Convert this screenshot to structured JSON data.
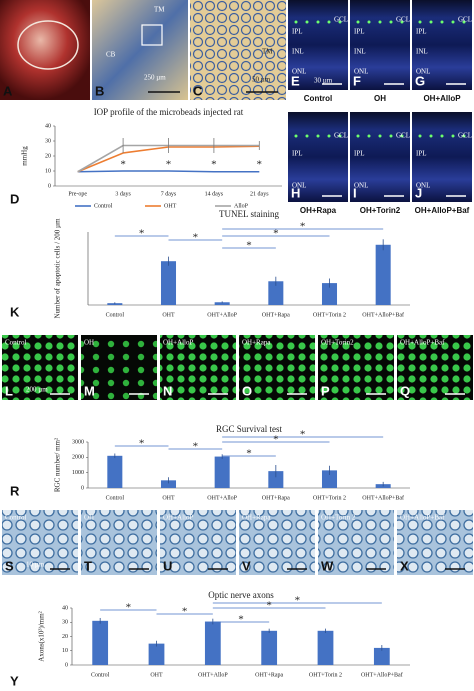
{
  "photos": [
    {
      "label": "A",
      "texts": []
    },
    {
      "label": "B",
      "texts": [
        "CB",
        "TM",
        "250 µm"
      ]
    },
    {
      "label": "C",
      "texts": [
        "TM",
        "50 µm"
      ]
    },
    {
      "label": "E",
      "texts": [
        "GCL",
        "IPL",
        "INL",
        "ONL",
        "30 µm"
      ],
      "caption": "Control"
    },
    {
      "label": "F",
      "texts": [
        "GCL",
        "IPL",
        "INL",
        "ONL"
      ],
      "caption": "OH"
    },
    {
      "label": "G",
      "texts": [
        "GCL",
        "IPL",
        "INL",
        "ONL"
      ],
      "caption": "OH+AlloP"
    },
    {
      "label": "H",
      "texts": [
        "GCL",
        "IPL",
        "ONL"
      ],
      "caption": "OH+Rapa"
    },
    {
      "label": "I",
      "texts": [
        "GCL",
        "IPL",
        "ONL"
      ],
      "caption": "OH+Torin2"
    },
    {
      "label": "J",
      "texts": [
        "GCL",
        "IPL",
        "ONL"
      ],
      "caption": "OH+AlloP+Baf"
    },
    {
      "label": "L",
      "texts": [
        "Control",
        "200 µm"
      ]
    },
    {
      "label": "M",
      "texts": [
        "OH"
      ]
    },
    {
      "label": "N",
      "texts": [
        "OH+AlloP"
      ]
    },
    {
      "label": "O",
      "texts": [
        "OH+Rapa"
      ]
    },
    {
      "label": "P",
      "texts": [
        "OH+Torin2"
      ]
    },
    {
      "label": "Q",
      "texts": [
        "OH+AlloP+Baf"
      ]
    },
    {
      "label": "S",
      "texts": [
        "Control",
        "10 µm"
      ]
    },
    {
      "label": "T",
      "texts": [
        "OH"
      ]
    },
    {
      "label": "U",
      "texts": [
        "OH+AlloP"
      ]
    },
    {
      "label": "V",
      "texts": [
        "OH+Rapa"
      ]
    },
    {
      "label": "W",
      "texts": [
        "OH+Torin 2"
      ]
    },
    {
      "label": "X",
      "texts": [
        "OH+AlloP+Baf"
      ]
    }
  ],
  "chart_data": [
    {
      "type": "line",
      "panel_label": "D",
      "title": "IOP profile of the microbeads injected rat",
      "y_label": "mmHg",
      "categories": [
        "Pre-ope",
        "3 days",
        "7 days",
        "14 days",
        "21 days"
      ],
      "ylim": [
        0,
        40
      ],
      "yticks": [
        0,
        10,
        20,
        30,
        40
      ],
      "legend": "bottom",
      "series": [
        {
          "name": "Control",
          "color": "#4472c4",
          "values": [
            9.5,
            10,
            10,
            9.5,
            9.5
          ]
        },
        {
          "name": "OHT",
          "color": "#ed7d31",
          "values": [
            9.5,
            22,
            26,
            26,
            26.5
          ]
        },
        {
          "name": "AlloP",
          "color": "#a5a5a5",
          "values": [
            9.5,
            27,
            27,
            27,
            27
          ],
          "errors": [
            0,
            5,
            5,
            5,
            3
          ]
        }
      ],
      "annotations": [
        "*",
        "*",
        "*",
        "*"
      ]
    },
    {
      "type": "bar",
      "panel_label": "K",
      "title": "TUNEL staining",
      "y_label": "Number of apoptotic cells / 200 µm",
      "color": "#4472c4",
      "categories": [
        "Control",
        "OHT",
        "OHT+AlloP",
        "OHT+Rapa",
        "OHT+Torin 2",
        "OHT+AlloP+Baf"
      ],
      "values": [
        2,
        48,
        3,
        26,
        24,
        66
      ],
      "errors": [
        1,
        5,
        1,
        5,
        5,
        6
      ],
      "ylim": [
        0,
        80
      ],
      "annotations": [
        "*",
        "*",
        "*",
        "*",
        "*"
      ]
    },
    {
      "type": "bar",
      "panel_label": "R",
      "title": "RGC Survival test",
      "y_label": "RGC number/ mm²",
      "color": "#4472c4",
      "categories": [
        "Control",
        "OHT",
        "OHT+AlloP",
        "OHT+Rapa",
        "OHT+Torin 2",
        "OHT+AlloP+Baf"
      ],
      "values": [
        2100,
        500,
        2050,
        1100,
        1150,
        250
      ],
      "errors": [
        150,
        200,
        150,
        400,
        300,
        150
      ],
      "ylim": [
        0,
        3000
      ],
      "yticks": [
        0,
        1000,
        2000,
        3000
      ],
      "annotations": [
        "*",
        "*",
        "*",
        "*",
        "*"
      ]
    },
    {
      "type": "bar",
      "panel_label": "Y",
      "title": "Optic nerve axons",
      "y_label": "Axons(x10³)/mm²",
      "color": "#4472c4",
      "categories": [
        "Control",
        "OHT",
        "OHT+AlloP",
        "OHT+Rapa",
        "OHT+Torin 2",
        "OHT+AlloP+Baf"
      ],
      "values": [
        31,
        15,
        30.5,
        24,
        24,
        12
      ],
      "errors": [
        2,
        2,
        2,
        1.5,
        1.5,
        2
      ],
      "ylim": [
        0,
        40
      ],
      "yticks": [
        0,
        10,
        20,
        30,
        40
      ],
      "annotations": [
        "*",
        "*",
        "*",
        "*",
        "*"
      ]
    }
  ]
}
